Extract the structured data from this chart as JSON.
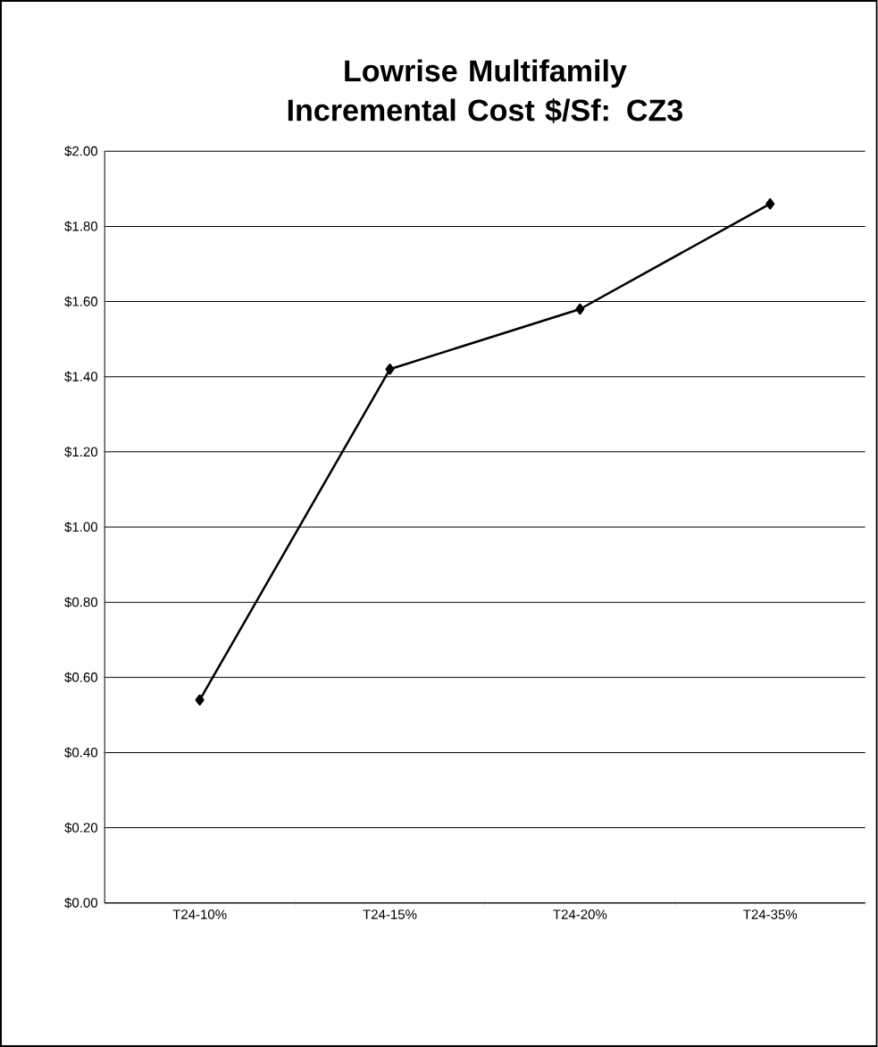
{
  "chart_data": {
    "type": "line",
    "title": "Lowrise Multifamily Incremental Cost $/Sf: CZ3",
    "categories": [
      "T24-10%",
      "T24-15%",
      "T24-20%",
      "T24-35%"
    ],
    "series": [
      {
        "color": "#000000",
        "values": [
          0.54,
          1.42,
          1.58,
          1.86
        ]
      }
    ],
    "ylim": [
      0,
      2
    ],
    "yticks": [
      {
        "value": 0,
        "label": "$0.00"
      },
      {
        "value": 0.2,
        "label": "$0.20"
      },
      {
        "value": 0.4,
        "label": "$0.40"
      },
      {
        "value": 0.6,
        "label": "$0.60"
      },
      {
        "value": 0.8,
        "label": "$0.80"
      },
      {
        "value": 1.0,
        "label": "$1.00"
      },
      {
        "value": 1.2,
        "label": "$1.20"
      },
      {
        "value": 1.4,
        "label": "$1.40"
      },
      {
        "value": 1.6,
        "label": "$1.60"
      },
      {
        "value": 1.8,
        "label": "$1.80"
      },
      {
        "value": 2.0,
        "label": "$2.00"
      }
    ],
    "grid": "y",
    "legend": false,
    "marker": "diamond",
    "line_style": "solid"
  }
}
